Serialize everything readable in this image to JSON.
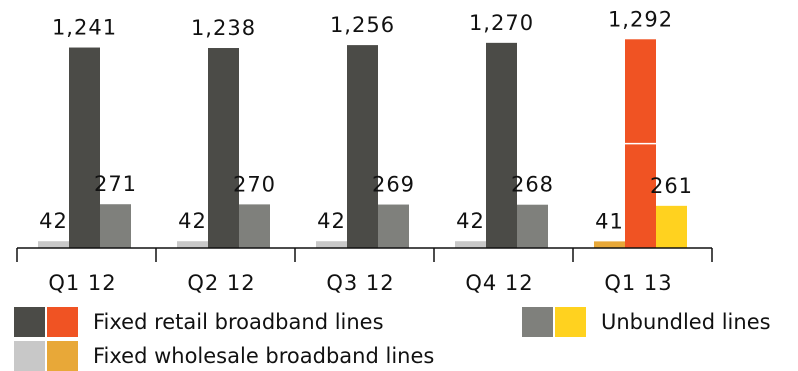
{
  "chart_data": {
    "type": "bar",
    "categories": [
      "Q1 12",
      "Q2 12",
      "Q3 12",
      "Q4 12",
      "Q1 13"
    ],
    "series": [
      {
        "name": "Fixed wholesale broadband lines",
        "values": [
          42,
          42,
          42,
          42,
          41
        ],
        "labels": [
          "42",
          "42",
          "42",
          "42",
          "41"
        ],
        "color": "#c8c8c8",
        "highlight_color": "#e8a838"
      },
      {
        "name": "Fixed retail broadband lines",
        "values": [
          1241,
          1238,
          1256,
          1270,
          1292
        ],
        "labels": [
          "1,241",
          "1,238",
          "1,256",
          "1,270",
          "1,292"
        ],
        "color": "#4b4b47",
        "highlight_color": "#f05323"
      },
      {
        "name": "Unbundled lines",
        "values": [
          271,
          270,
          269,
          268,
          261
        ],
        "labels": [
          "271",
          "270",
          "269",
          "268",
          "261"
        ],
        "color": "#7f807c",
        "highlight_color": "#ffd21f"
      }
    ],
    "highlight_category": "Q1 13",
    "ylim": [
      0,
      1300
    ],
    "grid": false,
    "legend_position": "bottom"
  },
  "legend": {
    "retail": {
      "label": "Fixed retail broadband lines",
      "colors": [
        "#4b4b47",
        "#f05323"
      ]
    },
    "unbundled": {
      "label": "Unbundled lines",
      "colors": [
        "#7f807c",
        "#ffd21f"
      ]
    },
    "wholesale": {
      "label": "Fixed wholesale broadband lines",
      "colors": [
        "#c8c8c8",
        "#e8a838"
      ]
    }
  }
}
